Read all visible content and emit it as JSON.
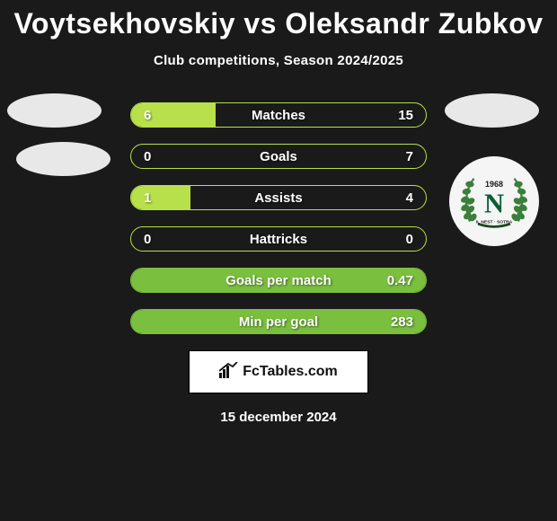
{
  "title": "Voytsekhovskiy vs Oleksandr Zubkov",
  "subtitle": "Club competitions, Season 2024/2025",
  "footer_date": "15 december 2024",
  "branding": "FcTables.com",
  "colors": {
    "background": "#1a1a1a",
    "border_default": "#b8e04a",
    "fill_left": "#b8e04a",
    "fill_right_variant": "#7bbf3f",
    "text": "#ffffff"
  },
  "club_badge": {
    "year": "1968",
    "letter": "N",
    "subtitle": "IL NEST · SOTRA",
    "letter_color": "#0a5f38",
    "wreath_color": "#3a7f3a",
    "bg": "#f5f5f5"
  },
  "stats": [
    {
      "label": "Matches",
      "left_value": "6",
      "right_value": "15",
      "left_pct": 28.6,
      "right_pct": 71.4,
      "border_color": "#b8e04a",
      "left_fill": "#b8e04a",
      "right_fill": "transparent"
    },
    {
      "label": "Goals",
      "left_value": "0",
      "right_value": "7",
      "left_pct": 0,
      "right_pct": 100,
      "border_color": "#b8e04a",
      "left_fill": "transparent",
      "right_fill": "transparent"
    },
    {
      "label": "Assists",
      "left_value": "1",
      "right_value": "4",
      "left_pct": 20,
      "right_pct": 80,
      "border_color": "#b8e04a",
      "left_fill": "#b8e04a",
      "right_fill": "transparent"
    },
    {
      "label": "Hattricks",
      "left_value": "0",
      "right_value": "0",
      "left_pct": 0,
      "right_pct": 0,
      "border_color": "#b8e04a",
      "left_fill": "transparent",
      "right_fill": "transparent"
    },
    {
      "label": "Goals per match",
      "left_value": "",
      "right_value": "0.47",
      "left_pct": 0,
      "right_pct": 100,
      "border_color": "#7bbf3f",
      "left_fill": "transparent",
      "right_fill": "#7bbf3f"
    },
    {
      "label": "Min per goal",
      "left_value": "",
      "right_value": "283",
      "left_pct": 0,
      "right_pct": 100,
      "border_color": "#7bbf3f",
      "left_fill": "transparent",
      "right_fill": "#7bbf3f"
    }
  ]
}
